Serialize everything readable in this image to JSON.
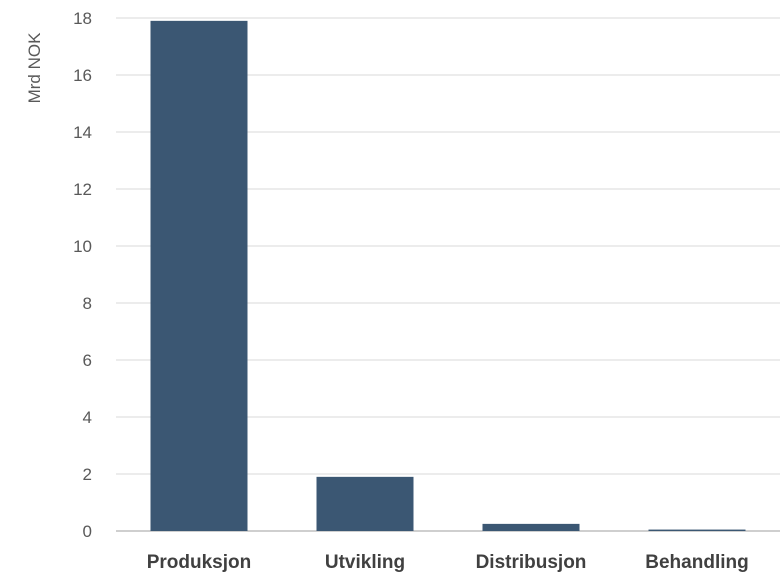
{
  "chart_data": {
    "type": "bar",
    "title": "",
    "xlabel": "",
    "ylabel": "Mrd NOK",
    "categories": [
      "Produksjon",
      "Utvikling",
      "Distribusjon",
      "Behandling"
    ],
    "values": [
      17.9,
      1.9,
      0.25,
      0.05
    ],
    "ylim": [
      0,
      18
    ],
    "yticks": [
      "0",
      "2",
      "4",
      "6",
      "8",
      "10",
      "12",
      "14",
      "16",
      "18"
    ],
    "grid": true,
    "legend": "none",
    "colors": {
      "bar": "#3b5773",
      "grid": "#d9d9d9",
      "axis": "#bfbfbf"
    }
  }
}
